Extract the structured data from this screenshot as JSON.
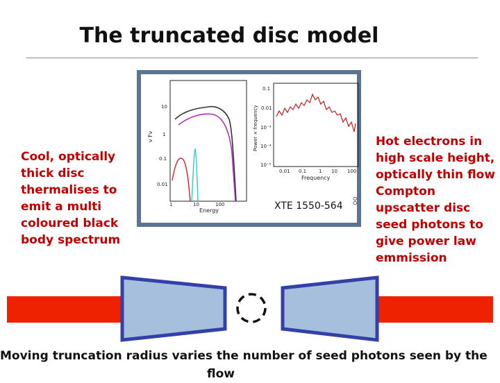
{
  "title": "The truncated disc model",
  "left_text": "Cool, optically\nthick disc\nthermalises   to\nemit a multi\ncoloured black\nbody spectrum",
  "right_text": "Hot electrons in\nhigh scale height,\noptically thin flow\nCompton\nupscatter   disc\nseed photons to\ngive power law\nemmission",
  "source_label": "XTE 1550-564",
  "side_glyph": "oo",
  "caption_line1": "Moving truncation radius varies the number of seed photons seen by the",
  "caption_line2": "flow",
  "spectrum_plot": {
    "ylabel": "ν Fν",
    "xlabel": "Energy",
    "y_ticks": [
      "10",
      "1",
      "0.1",
      "0.01"
    ],
    "x_ticks": [
      "1",
      "10",
      "100"
    ]
  },
  "pds_plot": {
    "ylabel": "Power × frequency",
    "xlabel": "Frequency",
    "y_ticks": [
      "0.1",
      "0.01",
      "10⁻³",
      "10⁻⁴",
      "10⁻⁵"
    ],
    "x_ticks": [
      "0.01",
      "0.1",
      "1",
      "10",
      "100"
    ]
  },
  "colors": {
    "text_red": "#c00000",
    "frame": "#5a7494",
    "disc_fill": "#a6bfdc",
    "disc_stroke": "#3340a8",
    "jet_red": "#ee2200"
  }
}
